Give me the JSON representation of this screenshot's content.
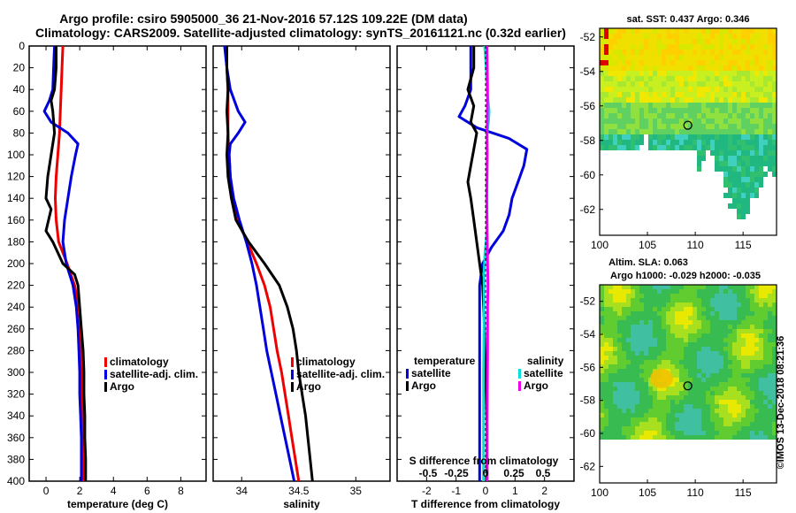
{
  "title_line1": "Argo profile: csiro 5905000_36 21-Nov-2016 57.12S 109.22E (DM data)",
  "title_line2": "Climatology: CARS2009. Satellite-adjusted climatology: synTS_20161121.nc (0.32d earlier)",
  "watermark": "©IMOS 13-Dec-2018 08:21:36",
  "chart_data": [
    {
      "type": "line",
      "name": "temperature-panel",
      "xlabel": "temperature (deg C)",
      "ylabel": "",
      "xlim": [
        -1,
        9.5
      ],
      "ylim": [
        400,
        0
      ],
      "xticks": [
        "0",
        "2",
        "4",
        "6",
        "8"
      ],
      "xtick_values": [
        0,
        2,
        4,
        6,
        8
      ],
      "yticks": [
        0,
        20,
        40,
        60,
        80,
        100,
        120,
        140,
        160,
        180,
        200,
        220,
        240,
        260,
        280,
        300,
        320,
        340,
        360,
        380,
        400
      ],
      "legend": [
        "climatology",
        "satellite-adj. clim.",
        "Argo"
      ],
      "series": [
        {
          "name": "climatology",
          "color": "#ee0000",
          "points": [
            [
              1.0,
              0
            ],
            [
              0.95,
              20
            ],
            [
              0.9,
              40
            ],
            [
              0.85,
              60
            ],
            [
              0.8,
              80
            ],
            [
              0.7,
              100
            ],
            [
              0.6,
              120
            ],
            [
              0.55,
              140
            ],
            [
              0.6,
              160
            ],
            [
              0.75,
              180
            ],
            [
              1.25,
              200
            ],
            [
              1.7,
              220
            ],
            [
              1.95,
              240
            ],
            [
              2.05,
              260
            ],
            [
              2.1,
              280
            ],
            [
              2.1,
              300
            ],
            [
              2.15,
              320
            ],
            [
              2.15,
              340
            ],
            [
              2.2,
              360
            ],
            [
              2.2,
              380
            ],
            [
              2.2,
              400
            ]
          ]
        },
        {
          "name": "satellite-adj. clim.",
          "color": "#0000dd",
          "points": [
            [
              0.5,
              0
            ],
            [
              0.45,
              20
            ],
            [
              0.4,
              40
            ],
            [
              0.2,
              50
            ],
            [
              -0.1,
              60
            ],
            [
              0.3,
              70
            ],
            [
              1.3,
              80
            ],
            [
              1.9,
              90
            ],
            [
              1.75,
              100
            ],
            [
              1.5,
              120
            ],
            [
              1.3,
              140
            ],
            [
              1.1,
              160
            ],
            [
              1.0,
              180
            ],
            [
              1.2,
              200
            ],
            [
              1.6,
              220
            ],
            [
              1.8,
              240
            ],
            [
              1.9,
              260
            ],
            [
              1.95,
              280
            ],
            [
              2.0,
              300
            ],
            [
              2.0,
              320
            ],
            [
              2.05,
              340
            ],
            [
              2.1,
              360
            ],
            [
              2.1,
              380
            ],
            [
              2.1,
              400
            ]
          ]
        },
        {
          "name": "Argo",
          "color": "#000000",
          "points": [
            [
              0.6,
              0
            ],
            [
              0.6,
              20
            ],
            [
              0.5,
              40
            ],
            [
              0.3,
              50
            ],
            [
              0.4,
              60
            ],
            [
              0.5,
              80
            ],
            [
              0.3,
              100
            ],
            [
              0.1,
              120
            ],
            [
              0.0,
              140
            ],
            [
              0.3,
              150
            ],
            [
              0.0,
              170
            ],
            [
              0.4,
              180
            ],
            [
              1.0,
              200
            ],
            [
              1.7,
              210
            ],
            [
              1.9,
              220
            ],
            [
              2.0,
              240
            ],
            [
              2.1,
              260
            ],
            [
              2.2,
              280
            ],
            [
              2.25,
              300
            ],
            [
              2.25,
              320
            ],
            [
              2.3,
              340
            ],
            [
              2.3,
              360
            ],
            [
              2.35,
              380
            ],
            [
              2.35,
              400
            ]
          ]
        }
      ]
    },
    {
      "type": "line",
      "name": "salinity-panel",
      "xlabel": "salinity",
      "ylabel": "",
      "xlim": [
        33.75,
        35.3
      ],
      "ylim": [
        400,
        0
      ],
      "xticks": [
        "34",
        "34.5",
        "35"
      ],
      "xtick_values": [
        34,
        34.5,
        35
      ],
      "legend": [
        "climatology",
        "satellite-adj. clim.",
        "Argo"
      ],
      "series": [
        {
          "name": "climatology",
          "color": "#ee0000",
          "points": [
            [
              33.87,
              0
            ],
            [
              33.87,
              20
            ],
            [
              33.88,
              40
            ],
            [
              33.88,
              60
            ],
            [
              33.88,
              80
            ],
            [
              33.89,
              100
            ],
            [
              33.9,
              120
            ],
            [
              33.92,
              140
            ],
            [
              33.96,
              160
            ],
            [
              34.05,
              180
            ],
            [
              34.13,
              200
            ],
            [
              34.2,
              220
            ],
            [
              34.25,
              240
            ],
            [
              34.28,
              260
            ],
            [
              34.31,
              280
            ],
            [
              34.35,
              300
            ],
            [
              34.38,
              320
            ],
            [
              34.41,
              340
            ],
            [
              34.44,
              360
            ],
            [
              34.47,
              380
            ],
            [
              34.5,
              400
            ]
          ]
        },
        {
          "name": "satellite-adj. clim.",
          "color": "#0000dd",
          "points": [
            [
              33.85,
              0
            ],
            [
              33.87,
              20
            ],
            [
              33.9,
              40
            ],
            [
              33.97,
              60
            ],
            [
              34.03,
              70
            ],
            [
              33.97,
              80
            ],
            [
              33.9,
              90
            ],
            [
              33.89,
              100
            ],
            [
              33.9,
              120
            ],
            [
              33.93,
              140
            ],
            [
              33.98,
              160
            ],
            [
              34.04,
              180
            ],
            [
              34.09,
              200
            ],
            [
              34.13,
              220
            ],
            [
              34.16,
              240
            ],
            [
              34.19,
              260
            ],
            [
              34.22,
              280
            ],
            [
              34.26,
              300
            ],
            [
              34.3,
              320
            ],
            [
              34.34,
              340
            ],
            [
              34.38,
              360
            ],
            [
              34.42,
              380
            ],
            [
              34.46,
              400
            ]
          ]
        },
        {
          "name": "Argo",
          "color": "#000000",
          "points": [
            [
              33.87,
              0
            ],
            [
              33.87,
              20
            ],
            [
              33.88,
              40
            ],
            [
              33.87,
              60
            ],
            [
              33.88,
              80
            ],
            [
              33.87,
              100
            ],
            [
              33.88,
              120
            ],
            [
              33.91,
              140
            ],
            [
              33.95,
              160
            ],
            [
              34.06,
              180
            ],
            [
              34.2,
              200
            ],
            [
              34.33,
              220
            ],
            [
              34.4,
              240
            ],
            [
              34.45,
              260
            ],
            [
              34.48,
              280
            ],
            [
              34.5,
              300
            ],
            [
              34.53,
              320
            ],
            [
              34.56,
              340
            ],
            [
              34.58,
              360
            ],
            [
              34.6,
              380
            ],
            [
              34.62,
              400
            ]
          ]
        }
      ]
    },
    {
      "type": "line",
      "name": "difference-panel",
      "xlabel": "T difference from climatology",
      "xlabel_top": "S difference from climatology",
      "xlim": [
        -3,
        3
      ],
      "ylim": [
        400,
        0
      ],
      "xticks": [
        "-2",
        "-1",
        "0",
        "1",
        "2"
      ],
      "xtick_values": [
        -2,
        -1,
        0,
        1,
        2
      ],
      "xticks_top": [
        "-0.5",
        "-0.25",
        "0",
        "0.25",
        "0.5"
      ],
      "legend_temperature_title": "temperature",
      "legend_salinity_title": "salinity",
      "legend_temperature": [
        "satellite",
        "Argo"
      ],
      "legend_salinity": [
        "satellite",
        "Argo"
      ],
      "series": [
        {
          "name": "T satellite",
          "color": "#0000dd",
          "points": [
            [
              -0.5,
              0
            ],
            [
              -0.5,
              20
            ],
            [
              -0.5,
              40
            ],
            [
              -0.7,
              55
            ],
            [
              -0.9,
              65
            ],
            [
              -0.3,
              75
            ],
            [
              0.8,
              85
            ],
            [
              1.4,
              95
            ],
            [
              1.3,
              110
            ],
            [
              1.1,
              125
            ],
            [
              0.9,
              140
            ],
            [
              0.8,
              155
            ],
            [
              0.6,
              170
            ],
            [
              0.2,
              185
            ],
            [
              -0.1,
              200
            ],
            [
              -0.2,
              220
            ],
            [
              -0.2,
              250
            ],
            [
              -0.2,
              300
            ],
            [
              -0.2,
              350
            ],
            [
              -0.2,
              400
            ]
          ]
        },
        {
          "name": "T Argo",
          "color": "#000000",
          "points": [
            [
              -0.4,
              0
            ],
            [
              -0.4,
              20
            ],
            [
              -0.6,
              40
            ],
            [
              -0.4,
              55
            ],
            [
              -0.5,
              70
            ],
            [
              -0.3,
              80
            ],
            [
              -0.4,
              95
            ],
            [
              -0.5,
              110
            ],
            [
              -0.6,
              125
            ],
            [
              -0.5,
              140
            ],
            [
              -0.4,
              160
            ],
            [
              -0.3,
              180
            ],
            [
              -0.2,
              200
            ],
            [
              -0.1,
              220
            ],
            [
              -0.05,
              250
            ],
            [
              0.0,
              300
            ],
            [
              0.05,
              350
            ],
            [
              0.05,
              400
            ]
          ]
        },
        {
          "name": "S satellite",
          "color": "#00e0e0",
          "points": [
            [
              -0.03,
              0
            ],
            [
              0.02,
              20
            ],
            [
              0.05,
              40
            ],
            [
              0.12,
              60
            ],
            [
              0.1,
              70
            ],
            [
              0.05,
              80
            ],
            [
              0.05,
              100
            ],
            [
              0.05,
              140
            ],
            [
              0.05,
              170
            ],
            [
              -0.02,
              190
            ],
            [
              -0.05,
              210
            ],
            [
              -0.05,
              250
            ],
            [
              -0.07,
              300
            ],
            [
              -0.07,
              350
            ],
            [
              -0.07,
              400
            ]
          ]
        },
        {
          "name": "S Argo",
          "color": "#ee00ee",
          "points": [
            [
              0.05,
              0
            ],
            [
              0.06,
              20
            ],
            [
              0.07,
              40
            ],
            [
              0.06,
              60
            ],
            [
              0.05,
              80
            ],
            [
              0.06,
              100
            ],
            [
              0.05,
              120
            ],
            [
              0.04,
              140
            ],
            [
              0.05,
              160
            ],
            [
              0.06,
              180
            ],
            [
              0.07,
              200
            ],
            [
              0.08,
              220
            ],
            [
              0.07,
              240
            ],
            [
              0.07,
              280
            ],
            [
              0.06,
              320
            ],
            [
              0.05,
              360
            ],
            [
              0.05,
              400
            ]
          ]
        }
      ]
    },
    {
      "type": "heatmap",
      "name": "sst-map",
      "title": "sat. SST: 0.437 Argo: 0.346",
      "xlim": [
        100,
        118.5
      ],
      "ylim": [
        -63.5,
        -51.5
      ],
      "xticks": [
        "100",
        "105",
        "110",
        "115"
      ],
      "xtick_values": [
        100,
        105,
        110,
        115
      ],
      "yticks": [
        "-52",
        "-54",
        "-56",
        "-58",
        "-60",
        "-62"
      ],
      "ytick_values": [
        -52,
        -54,
        -56,
        -58,
        -60,
        -62
      ],
      "marker": {
        "lon": 109.22,
        "lat": -57.12
      }
    },
    {
      "type": "heatmap",
      "name": "sla-map",
      "title": "Altim. SLA: 0.063",
      "subtitle": "Argo h1000: -0.029 h2000: -0.035",
      "xlim": [
        100,
        118.5
      ],
      "ylim": [
        -63,
        -51
      ],
      "xticks": [
        "100",
        "105",
        "110",
        "115"
      ],
      "xtick_values": [
        100,
        105,
        110,
        115
      ],
      "yticks": [
        "-52",
        "-54",
        "-56",
        "-58",
        "-60",
        "-62"
      ],
      "ytick_values": [
        -52,
        -54,
        -56,
        -58,
        -60,
        -62
      ],
      "marker": {
        "lon": 109.22,
        "lat": -57.12
      }
    }
  ]
}
